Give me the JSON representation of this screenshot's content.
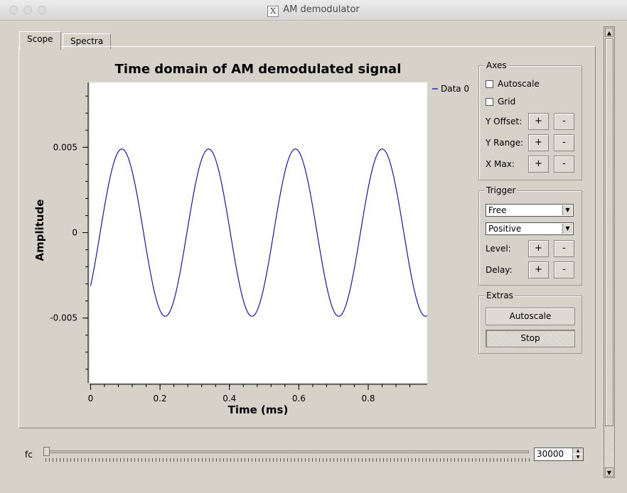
{
  "window": {
    "title": "AM demodulator",
    "x_logo": "X"
  },
  "tabs": [
    {
      "label": "Scope",
      "active": true
    },
    {
      "label": "Spectra",
      "active": false
    }
  ],
  "chart_data": {
    "type": "line",
    "title": "Time domain of AM demodulated signal",
    "xlabel": "Time (ms)",
    "ylabel": "Amplitude",
    "xlim": [
      -0.003,
      0.97
    ],
    "ylim": [
      -0.0088,
      0.0088
    ],
    "x_ticks": [
      0,
      0.2,
      0.4,
      0.6,
      0.8
    ],
    "x_tick_labels": [
      "0",
      "0.2",
      "0.4",
      "0.6",
      "0.8"
    ],
    "y_ticks": [
      -0.005,
      0,
      0.005
    ],
    "y_tick_labels": [
      "-0.005",
      "0",
      "0.005"
    ],
    "legend": "Data 0",
    "legend_position": "right-top",
    "grid": false,
    "color": "#0000c0",
    "series": [
      {
        "name": "Data 0",
        "amplitude": 0.0049,
        "period_ms": 0.25,
        "peak_times_ms": [
          0.09,
          0.34,
          0.59,
          0.84
        ],
        "trough_times_ms": [
          0.215,
          0.465,
          0.715,
          0.965
        ],
        "x": [
          0.0,
          0.025,
          0.05,
          0.075,
          0.09,
          0.115,
          0.15,
          0.18,
          0.215,
          0.24,
          0.275,
          0.305,
          0.34,
          0.365,
          0.4,
          0.43,
          0.465,
          0.49,
          0.525,
          0.555,
          0.59,
          0.615,
          0.65,
          0.68,
          0.715,
          0.74,
          0.775,
          0.805,
          0.84,
          0.865,
          0.9,
          0.93,
          0.965,
          0.97
        ],
        "y": [
          -0.0029,
          0.0005,
          0.0035,
          0.0047,
          0.0049,
          0.0036,
          0.0002,
          -0.0034,
          -0.0049,
          -0.0039,
          -0.0005,
          0.0033,
          0.0049,
          0.0039,
          0.0003,
          -0.0033,
          -0.0049,
          -0.0039,
          -0.0005,
          0.0033,
          0.0049,
          0.0039,
          0.0003,
          -0.0033,
          -0.0049,
          -0.0039,
          -0.0005,
          0.0033,
          0.0049,
          0.0039,
          0.0003,
          -0.0033,
          -0.0049,
          -0.0046
        ]
      }
    ]
  },
  "axes_group": {
    "title": "Axes",
    "autoscale_label": "Autoscale",
    "autoscale_checked": false,
    "grid_label": "Grid",
    "grid_checked": false,
    "y_offset_label": "Y Offset:",
    "y_range_label": "Y Range:",
    "x_max_label": "X Max:",
    "plus": "+",
    "minus": "-"
  },
  "trigger_group": {
    "title": "Trigger",
    "mode_value": "Free",
    "slope_value": "Positive",
    "level_label": "Level:",
    "delay_label": "Delay:",
    "plus": "+",
    "minus": "-"
  },
  "extras_group": {
    "title": "Extras",
    "autoscale_button": "Autoscale",
    "stop_button": "Stop"
  },
  "fc_control": {
    "label": "fc",
    "value": "30000"
  }
}
